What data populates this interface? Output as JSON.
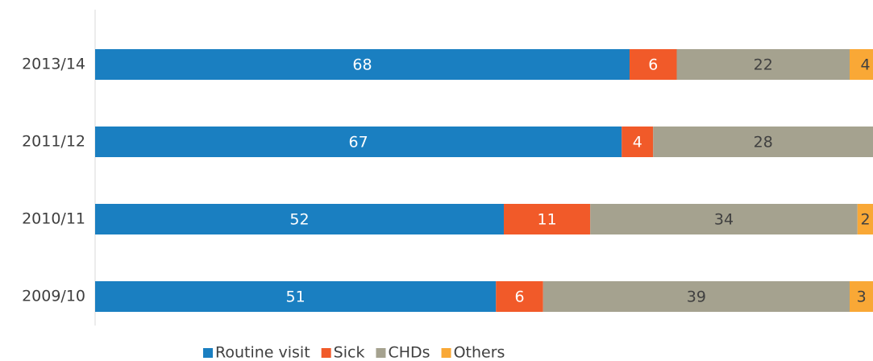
{
  "chart_data": {
    "type": "stacked-bar-horizontal",
    "categories": [
      "2013/14",
      "2011/12",
      "2010/11",
      "2009/10"
    ],
    "series": [
      {
        "name": "Routine visit",
        "color": "#1a7fc1",
        "values": [
          68,
          67,
          52,
          51
        ]
      },
      {
        "name": "Sick",
        "color": "#f15a29",
        "values": [
          6,
          4,
          11,
          6
        ]
      },
      {
        "name": "CHDs",
        "color": "#a5a28f",
        "values": [
          22,
          28,
          34,
          39
        ]
      },
      {
        "name": "Others",
        "color": "#f9a836",
        "values": [
          4,
          1,
          2,
          3
        ]
      }
    ],
    "xlim": [
      0,
      100
    ],
    "legend": "bottom"
  }
}
